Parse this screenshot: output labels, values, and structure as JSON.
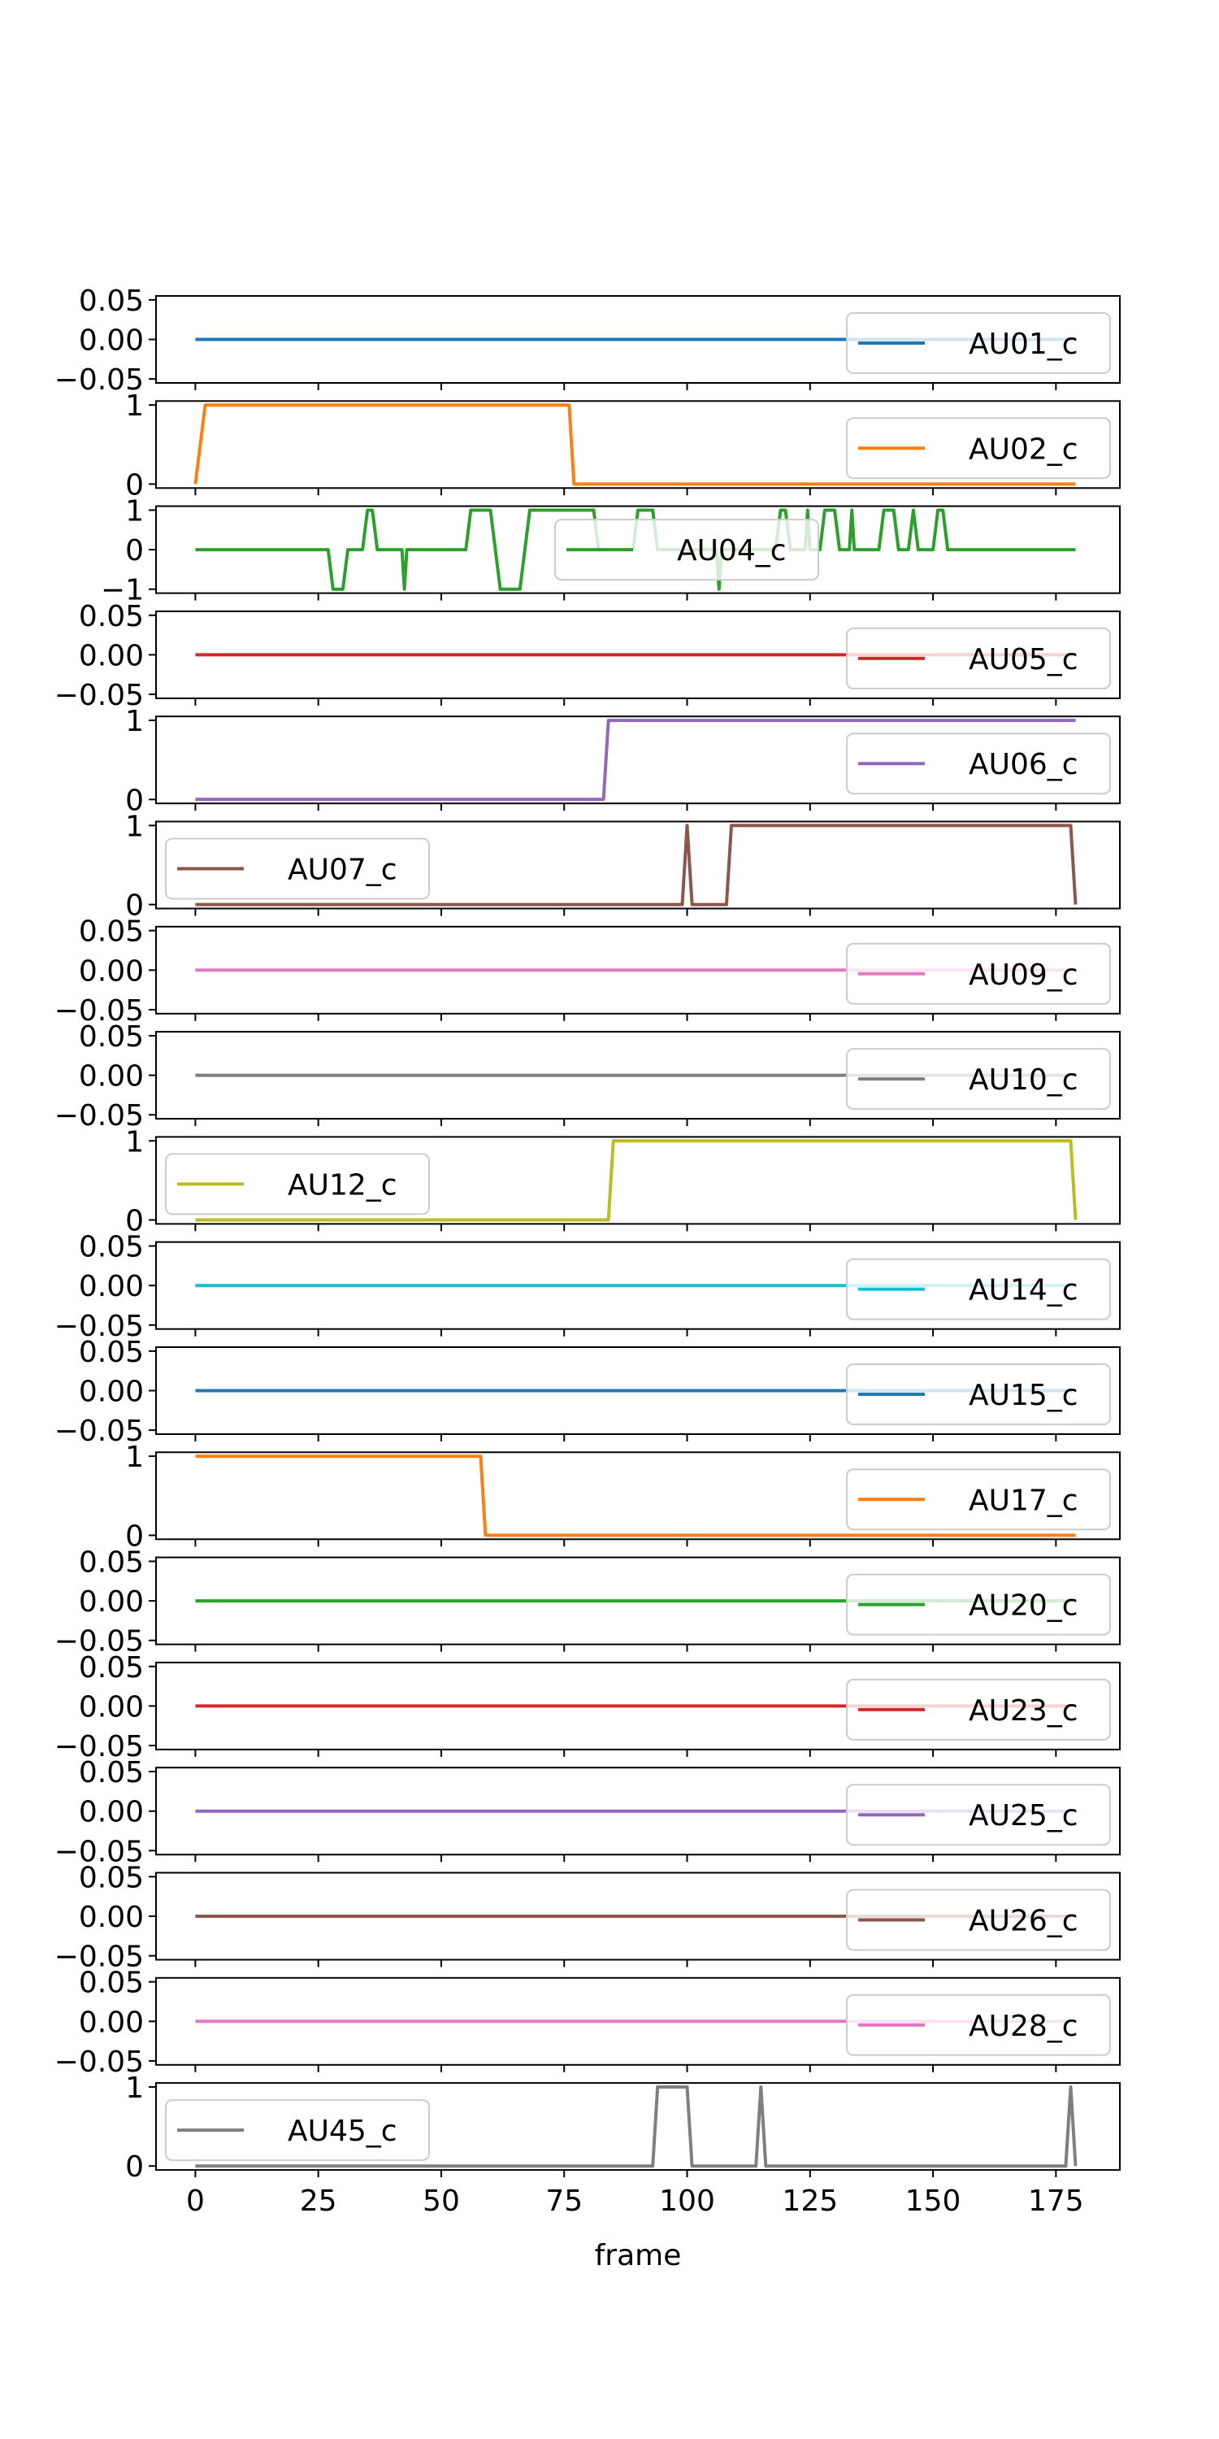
{
  "chart_data": {
    "type": "line",
    "xlabel": "frame",
    "xlim": [
      -8,
      188
    ],
    "x_ticks": [
      0,
      25,
      50,
      75,
      100,
      125,
      150,
      175
    ],
    "x_tick_labels": [
      "0",
      "25",
      "50",
      "75",
      "100",
      "125",
      "150",
      "175"
    ],
    "frames": [
      0,
      179
    ],
    "panels": [
      {
        "name": "AU01_c",
        "color": "#1f77b4",
        "ylim": [
          -0.055,
          0.055
        ],
        "yticks": [
          -0.05,
          0,
          0.05
        ],
        "ytick_labels": [
          "−0.05",
          "0.00",
          "0.05"
        ],
        "legend": "right",
        "segments": [
          [
            0,
            0
          ]
        ]
      },
      {
        "name": "AU02_c",
        "color": "#ff7f0e",
        "ylim": [
          -0.05,
          1.05
        ],
        "yticks": [
          0,
          1
        ],
        "ytick_labels": [
          "0",
          "1"
        ],
        "legend": "right",
        "segments": [
          [
            0,
            0
          ],
          [
            2,
            1
          ],
          [
            76,
            1
          ],
          [
            77,
            0
          ],
          [
            179,
            0
          ]
        ]
      },
      {
        "name": "AU04_c",
        "color": "#2ca02c",
        "ylim": [
          -1.1,
          1.1
        ],
        "yticks": [
          -1,
          0,
          1
        ],
        "ytick_labels": [
          "−1",
          "0",
          "1"
        ],
        "legend": "center",
        "segments": [
          [
            0,
            0
          ],
          [
            27,
            0
          ],
          [
            28,
            -1
          ],
          [
            30,
            -1
          ],
          [
            31,
            0
          ],
          [
            34,
            0
          ],
          [
            35,
            1
          ],
          [
            36,
            1
          ],
          [
            37,
            0
          ],
          [
            42,
            0
          ],
          [
            42.5,
            -1
          ],
          [
            43,
            0
          ],
          [
            55,
            0
          ],
          [
            56,
            1
          ],
          [
            60,
            1
          ],
          [
            62,
            -1
          ],
          [
            66,
            -1
          ],
          [
            68,
            1
          ],
          [
            81,
            1
          ],
          [
            82,
            0
          ],
          [
            89,
            0
          ],
          [
            90,
            1
          ],
          [
            93,
            1
          ],
          [
            94,
            0
          ],
          [
            106,
            0
          ],
          [
            106.5,
            -1
          ],
          [
            107,
            0
          ],
          [
            118,
            0
          ],
          [
            119,
            1
          ],
          [
            120,
            1
          ],
          [
            121,
            0
          ],
          [
            124,
            0
          ],
          [
            124.5,
            1
          ],
          [
            125,
            0
          ],
          [
            127,
            0
          ],
          [
            128,
            1
          ],
          [
            130,
            1
          ],
          [
            131,
            0
          ],
          [
            133,
            0
          ],
          [
            133.5,
            1
          ],
          [
            134,
            0
          ],
          [
            139,
            0
          ],
          [
            140,
            1
          ],
          [
            142,
            1
          ],
          [
            143,
            0
          ],
          [
            145,
            0
          ],
          [
            146,
            1
          ],
          [
            147,
            0
          ],
          [
            150,
            0
          ],
          [
            151,
            1
          ],
          [
            152,
            1
          ],
          [
            153,
            0
          ],
          [
            179,
            0
          ]
        ]
      },
      {
        "name": "AU05_c",
        "color": "#d62728",
        "ylim": [
          -0.055,
          0.055
        ],
        "yticks": [
          -0.05,
          0,
          0.05
        ],
        "ytick_labels": [
          "−0.05",
          "0.00",
          "0.05"
        ],
        "legend": "right",
        "segments": [
          [
            0,
            0
          ],
          [
            179,
            0
          ]
        ]
      },
      {
        "name": "AU06_c",
        "color": "#9467bd",
        "ylim": [
          -0.05,
          1.05
        ],
        "yticks": [
          0,
          1
        ],
        "ytick_labels": [
          "0",
          "1"
        ],
        "legend": "right",
        "segments": [
          [
            0,
            0
          ],
          [
            83,
            0
          ],
          [
            84,
            1
          ],
          [
            179,
            1
          ]
        ]
      },
      {
        "name": "AU07_c",
        "color": "#8c564b",
        "ylim": [
          -0.05,
          1.05
        ],
        "yticks": [
          0,
          1
        ],
        "ytick_labels": [
          "0",
          "1"
        ],
        "legend": "left",
        "segments": [
          [
            0,
            0
          ],
          [
            99,
            0
          ],
          [
            100,
            1
          ],
          [
            101,
            0
          ],
          [
            108,
            0
          ],
          [
            109,
            1
          ],
          [
            178,
            1
          ],
          [
            179,
            0
          ]
        ]
      },
      {
        "name": "AU09_c",
        "color": "#e377c2",
        "ylim": [
          -0.055,
          0.055
        ],
        "yticks": [
          -0.05,
          0,
          0.05
        ],
        "ytick_labels": [
          "−0.05",
          "0.00",
          "0.05"
        ],
        "legend": "right",
        "segments": [
          [
            0,
            0
          ],
          [
            179,
            0
          ]
        ]
      },
      {
        "name": "AU10_c",
        "color": "#7f7f7f",
        "ylim": [
          -0.055,
          0.055
        ],
        "yticks": [
          -0.05,
          0,
          0.05
        ],
        "ytick_labels": [
          "−0.05",
          "0.00",
          "0.05"
        ],
        "legend": "right",
        "segments": [
          [
            0,
            0
          ],
          [
            179,
            0
          ]
        ]
      },
      {
        "name": "AU12_c",
        "color": "#bcbd22",
        "ylim": [
          -0.05,
          1.05
        ],
        "yticks": [
          0,
          1
        ],
        "ytick_labels": [
          "0",
          "1"
        ],
        "legend": "left",
        "segments": [
          [
            0,
            0
          ],
          [
            84,
            0
          ],
          [
            85,
            1
          ],
          [
            178,
            1
          ],
          [
            179,
            0
          ]
        ]
      },
      {
        "name": "AU14_c",
        "color": "#17becf",
        "ylim": [
          -0.055,
          0.055
        ],
        "yticks": [
          -0.05,
          0,
          0.05
        ],
        "ytick_labels": [
          "−0.05",
          "0.00",
          "0.05"
        ],
        "legend": "right",
        "segments": [
          [
            0,
            0
          ],
          [
            179,
            0
          ]
        ]
      },
      {
        "name": "AU15_c",
        "color": "#1f77b4",
        "ylim": [
          -0.055,
          0.055
        ],
        "yticks": [
          -0.05,
          0,
          0.05
        ],
        "ytick_labels": [
          "−0.05",
          "0.00",
          "0.05"
        ],
        "legend": "right",
        "segments": [
          [
            0,
            0
          ],
          [
            179,
            0
          ]
        ]
      },
      {
        "name": "AU17_c",
        "color": "#ff7f0e",
        "ylim": [
          -0.05,
          1.05
        ],
        "yticks": [
          0,
          1
        ],
        "ytick_labels": [
          "0",
          "1"
        ],
        "legend": "right",
        "segments": [
          [
            0,
            1
          ],
          [
            58,
            1
          ],
          [
            59,
            0
          ],
          [
            179,
            0
          ]
        ]
      },
      {
        "name": "AU20_c",
        "color": "#2ca02c",
        "ylim": [
          -0.055,
          0.055
        ],
        "yticks": [
          -0.05,
          0,
          0.05
        ],
        "ytick_labels": [
          "−0.05",
          "0.00",
          "0.05"
        ],
        "legend": "right",
        "segments": [
          [
            0,
            0
          ],
          [
            179,
            0
          ]
        ]
      },
      {
        "name": "AU23_c",
        "color": "#d62728",
        "ylim": [
          -0.055,
          0.055
        ],
        "yticks": [
          -0.05,
          0,
          0.05
        ],
        "ytick_labels": [
          "−0.05",
          "0.00",
          "0.05"
        ],
        "legend": "right",
        "segments": [
          [
            0,
            0
          ],
          [
            179,
            0
          ]
        ]
      },
      {
        "name": "AU25_c",
        "color": "#9467bd",
        "ylim": [
          -0.055,
          0.055
        ],
        "yticks": [
          -0.05,
          0,
          0.05
        ],
        "ytick_labels": [
          "−0.05",
          "0.00",
          "0.05"
        ],
        "legend": "right",
        "segments": [
          [
            0,
            0
          ],
          [
            179,
            0
          ]
        ]
      },
      {
        "name": "AU26_c",
        "color": "#8c564b",
        "ylim": [
          -0.055,
          0.055
        ],
        "yticks": [
          -0.05,
          0,
          0.05
        ],
        "ytick_labels": [
          "−0.05",
          "0.00",
          "0.05"
        ],
        "legend": "right",
        "segments": [
          [
            0,
            0
          ],
          [
            179,
            0
          ]
        ]
      },
      {
        "name": "AU28_c",
        "color": "#e377c2",
        "ylim": [
          -0.055,
          0.055
        ],
        "yticks": [
          -0.05,
          0,
          0.05
        ],
        "ytick_labels": [
          "−0.05",
          "0.00",
          "0.05"
        ],
        "legend": "right",
        "segments": [
          [
            0,
            0
          ],
          [
            179,
            0
          ]
        ]
      },
      {
        "name": "AU45_c",
        "color": "#7f7f7f",
        "ylim": [
          -0.05,
          1.05
        ],
        "yticks": [
          0,
          1
        ],
        "ytick_labels": [
          "0",
          "1"
        ],
        "legend": "left",
        "segments": [
          [
            0,
            0
          ],
          [
            93,
            0
          ],
          [
            94,
            1
          ],
          [
            100,
            1
          ],
          [
            101,
            0
          ],
          [
            114,
            0
          ],
          [
            115,
            1
          ],
          [
            116,
            0
          ],
          [
            177,
            0
          ],
          [
            178,
            1
          ],
          [
            179,
            0
          ]
        ]
      }
    ]
  }
}
